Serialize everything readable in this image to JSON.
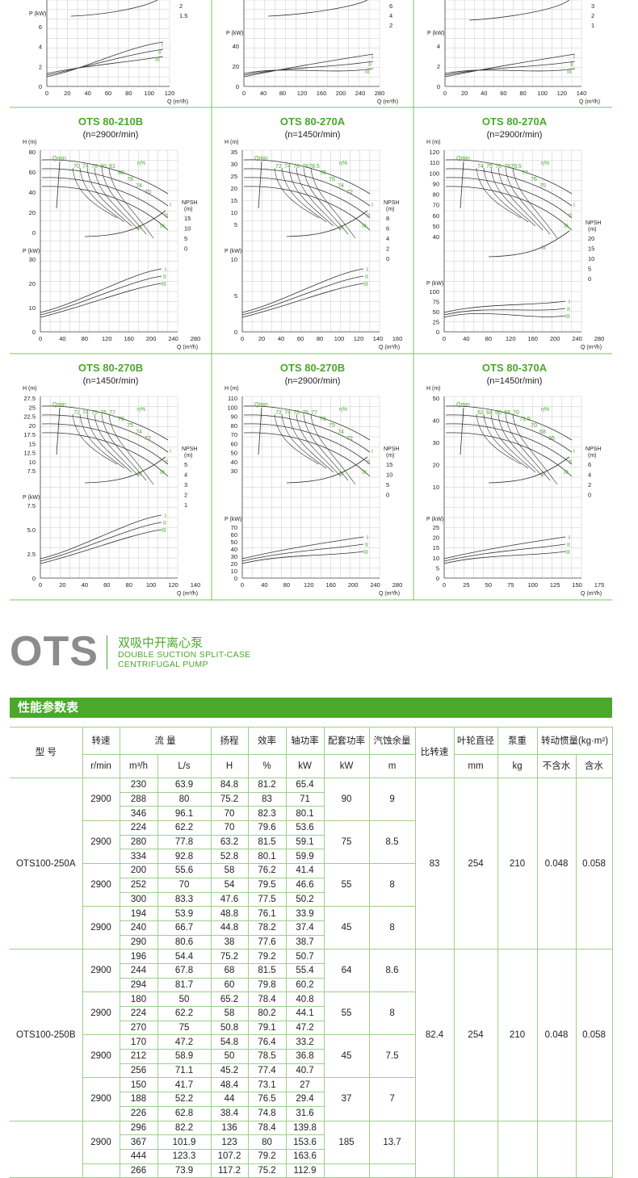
{
  "charts_row0": [
    {
      "p_ticks": [
        "0",
        "2",
        "4",
        "6"
      ],
      "p_label": "P (kW)",
      "q_ticks": [
        "0",
        "20",
        "40",
        "60",
        "80",
        "100",
        "120"
      ],
      "q_label": "Q (m³/h)",
      "npsh_ticks": [
        "2",
        "1.5"
      ]
    },
    {
      "p_ticks": [
        "0",
        "20",
        "40"
      ],
      "p_label": "P (kW)",
      "q_ticks": [
        "0",
        "40",
        "80",
        "120",
        "160",
        "200",
        "240",
        "280"
      ],
      "q_label": "Q (m³/h)",
      "npsh_ticks": [
        "6",
        "4",
        "2"
      ]
    },
    {
      "p_ticks": [
        "0",
        "2",
        "4"
      ],
      "p_label": "P (kW)",
      "q_ticks": [
        "0",
        "20",
        "40",
        "60",
        "80",
        "100",
        "120",
        "140"
      ],
      "q_label": "Q (m³/h)",
      "npsh_ticks": [
        "3",
        "2",
        "1"
      ]
    }
  ],
  "charts": [
    {
      "title": "OTS 80-210B",
      "speed": "(n=2900r/min)",
      "h_ticks": [
        "80",
        "60",
        "40",
        "20",
        "0"
      ],
      "npsh_ticks": [
        "15",
        "10",
        "5",
        "0"
      ],
      "p_ticks": [
        "30",
        "20",
        "10",
        "0"
      ],
      "q_ticks": [
        "0",
        "40",
        "80",
        "120",
        "160",
        "200",
        "240",
        "280"
      ],
      "eff_labels": [
        "70",
        "74",
        "78",
        "80",
        "81",
        "80",
        "78",
        "74",
        "70"
      ]
    },
    {
      "title": "OTS 80-270A",
      "speed": "(n=1450r/min)",
      "h_ticks": [
        "35",
        "30",
        "25",
        "20",
        "15",
        "10",
        "5"
      ],
      "npsh_ticks": [
        "8",
        "6",
        "4",
        "2",
        "0"
      ],
      "p_ticks": [
        "10",
        "5",
        "0"
      ],
      "q_ticks": [
        "0",
        "20",
        "40",
        "60",
        "80",
        "100",
        "120",
        "140",
        "160"
      ],
      "eff_labels": [
        "72",
        "74",
        "76",
        "78",
        "78.5",
        "78",
        "76",
        "74",
        "72"
      ]
    },
    {
      "title": "OTS 80-270A",
      "speed": "(n=2900r/min)",
      "h_ticks": [
        "120",
        "110",
        "100",
        "90",
        "80",
        "70",
        "60",
        "50",
        "40"
      ],
      "npsh_ticks": [
        "20",
        "15",
        "10",
        "5",
        "0"
      ],
      "p_ticks": [
        "100",
        "75",
        "50",
        "25",
        "0"
      ],
      "q_ticks": [
        "0",
        "40",
        "80",
        "120",
        "160",
        "200",
        "240",
        "280"
      ],
      "eff_labels": [
        "74",
        "75",
        "76",
        "78",
        "78.5",
        "77",
        "76",
        "75"
      ]
    },
    {
      "title": "OTS 80-270B",
      "speed": "(n=1450r/min)",
      "h_ticks": [
        "27.5",
        "25",
        "22.5",
        "20",
        "17.5",
        "15",
        "12.5",
        "10",
        "7.5"
      ],
      "npsh_ticks": [
        "5",
        "4",
        "3",
        "2",
        "1"
      ],
      "p_ticks": [
        "7.5",
        "5.0",
        "2.5",
        "0"
      ],
      "q_ticks": [
        "0",
        "20",
        "40",
        "60",
        "80",
        "100",
        "120",
        "140"
      ],
      "eff_labels": [
        "72",
        "74",
        "75",
        "76",
        "77",
        "76",
        "75",
        "74",
        "72"
      ]
    },
    {
      "title": "OTS 80-270B",
      "speed": "(n=2900r/min)",
      "h_ticks": [
        "110",
        "100",
        "90",
        "80",
        "70",
        "60",
        "50",
        "40",
        "30"
      ],
      "npsh_ticks": [
        "15",
        "10",
        "5",
        "0"
      ],
      "p_ticks": [
        "70",
        "60",
        "50",
        "40",
        "30",
        "20",
        "10",
        "0"
      ],
      "q_ticks": [
        "0",
        "40",
        "80",
        "120",
        "160",
        "200",
        "240",
        "280"
      ],
      "eff_labels": [
        "72",
        "74",
        "75",
        "76",
        "77",
        "76",
        "75",
        "74",
        "72"
      ]
    },
    {
      "title": "OTS 80-370A",
      "speed": "(n=1450r/min)",
      "h_ticks": [
        "50",
        "40",
        "30",
        "20",
        "10"
      ],
      "npsh_ticks": [
        "6",
        "4",
        "2",
        "0"
      ],
      "p_ticks": [
        "25",
        "20",
        "15",
        "10",
        "5",
        "0"
      ],
      "q_ticks": [
        "0",
        "25",
        "50",
        "75",
        "100",
        "125",
        "150",
        "175"
      ],
      "eff_labels": [
        "62",
        "64",
        "66",
        "68",
        "70",
        "71.5",
        "70",
        "68",
        "66"
      ]
    }
  ],
  "labels": {
    "h": "H (m)",
    "p": "P (kW)",
    "q": "Q (m³/h)",
    "npsh": "NPSH",
    "npsh_unit": "(m)",
    "qmin": "Qmin",
    "eta": "η%",
    "roman": [
      "I",
      "II",
      "III"
    ]
  },
  "brand": {
    "name": "OTS",
    "cn": "双吸中开离心泵",
    "en1": "DOUBLE SUCTION SPLIT-CASE",
    "en2": "CENTRIFUGAL PUMP"
  },
  "table_title": "性能参数表",
  "headers": {
    "model": "型 号",
    "speed": "转速",
    "flow": "流 量",
    "head": "扬程",
    "eff": "效率",
    "shaft": "轴功率",
    "motor": "配套功率",
    "npsh": "汽蚀余量",
    "ns": "比转速",
    "impeller": "叶轮直径",
    "weight": "泵重",
    "inertia": "转动惯量(kg·m²)",
    "u_speed": "r/min",
    "u_flow1": "m³/h",
    "u_flow2": "L/s",
    "u_head": "H",
    "u_eff": "%",
    "u_shaft": "kW",
    "u_motor": "kW",
    "u_npsh": "m",
    "u_impeller": "mm",
    "u_weight": "kg",
    "u_dry": "不含水",
    "u_wet": "含水"
  },
  "models": [
    {
      "name": "OTS100-250A",
      "ns": "83",
      "impeller": "254",
      "weight": "210",
      "dry": "0.048",
      "wet": "0.058",
      "groups": [
        {
          "speed": "2900",
          "motor": "90",
          "npsh": "9",
          "rows": [
            [
              "230",
              "63.9",
              "84.8",
              "81.2",
              "65.4"
            ],
            [
              "288",
              "80",
              "75.2",
              "83",
              "71"
            ],
            [
              "346",
              "96.1",
              "70",
              "82.3",
              "80.1"
            ]
          ]
        },
        {
          "speed": "2900",
          "motor": "75",
          "npsh": "8.5",
          "rows": [
            [
              "224",
              "62.2",
              "70",
              "79.6",
              "53.6"
            ],
            [
              "280",
              "77.8",
              "63.2",
              "81.5",
              "59.1"
            ],
            [
              "334",
              "92.8",
              "52.8",
              "80.1",
              "59.9"
            ]
          ]
        },
        {
          "speed": "2900",
          "motor": "55",
          "npsh": "8",
          "rows": [
            [
              "200",
              "55.6",
              "58",
              "76.2",
              "41.4"
            ],
            [
              "252",
              "70",
              "54",
              "79.5",
              "46.6"
            ],
            [
              "300",
              "83.3",
              "47.6",
              "77.5",
              "50.2"
            ]
          ]
        },
        {
          "speed": "2900",
          "motor": "45",
          "npsh": "8",
          "rows": [
            [
              "194",
              "53.9",
              "48.8",
              "76.1",
              "33.9"
            ],
            [
              "240",
              "66.7",
              "44.8",
              "78.2",
              "37.4"
            ],
            [
              "290",
              "80.6",
              "38",
              "77.6",
              "38.7"
            ]
          ]
        }
      ]
    },
    {
      "name": "OTS100-250B",
      "ns": "82.4",
      "impeller": "254",
      "weight": "210",
      "dry": "0.048",
      "wet": "0.058",
      "groups": [
        {
          "speed": "2900",
          "motor": "64",
          "npsh": "8.6",
          "rows": [
            [
              "196",
              "54.4",
              "75.2",
              "79.2",
              "50.7"
            ],
            [
              "244",
              "67.8",
              "68",
              "81.5",
              "55.4"
            ],
            [
              "294",
              "81.7",
              "60",
              "79.8",
              "60.2"
            ]
          ]
        },
        {
          "speed": "2900",
          "motor": "55",
          "npsh": "8",
          "rows": [
            [
              "180",
              "50",
              "65.2",
              "78.4",
              "40.8"
            ],
            [
              "224",
              "62.2",
              "58",
              "80.2",
              "44.1"
            ],
            [
              "270",
              "75",
              "50.8",
              "79.1",
              "47.2"
            ]
          ]
        },
        {
          "speed": "2900",
          "motor": "45",
          "npsh": "7.5",
          "rows": [
            [
              "170",
              "47.2",
              "54.8",
              "76.4",
              "33.2"
            ],
            [
              "212",
              "58.9",
              "50",
              "78.5",
              "36.8"
            ],
            [
              "256",
              "71.1",
              "45.2",
              "77.4",
              "40.7"
            ]
          ]
        },
        {
          "speed": "2900",
          "motor": "37",
          "npsh": "7",
          "rows": [
            [
              "150",
              "41.7",
              "48.4",
              "73.1",
              "27"
            ],
            [
              "188",
              "52.2",
              "44",
              "76.5",
              "29.4"
            ],
            [
              "226",
              "62.8",
              "38.4",
              "74.8",
              "31.6"
            ]
          ]
        }
      ]
    },
    {
      "name": "",
      "ns": "",
      "impeller": "",
      "weight": "",
      "dry": "",
      "wet": "",
      "groups": [
        {
          "speed": "2900",
          "motor": "185",
          "npsh": "13.7",
          "rows": [
            [
              "296",
              "82.2",
              "136",
              "78.4",
              "139.8"
            ],
            [
              "367",
              "101.9",
              "123",
              "80",
              "153.6"
            ],
            [
              "444",
              "123.3",
              "107.2",
              "79.2",
              "163.6"
            ]
          ]
        },
        {
          "speed": "",
          "motor": "",
          "npsh": "",
          "rows": [
            [
              "266",
              "73.9",
              "117.2",
              "75.2",
              "112.9"
            ]
          ]
        }
      ]
    }
  ]
}
